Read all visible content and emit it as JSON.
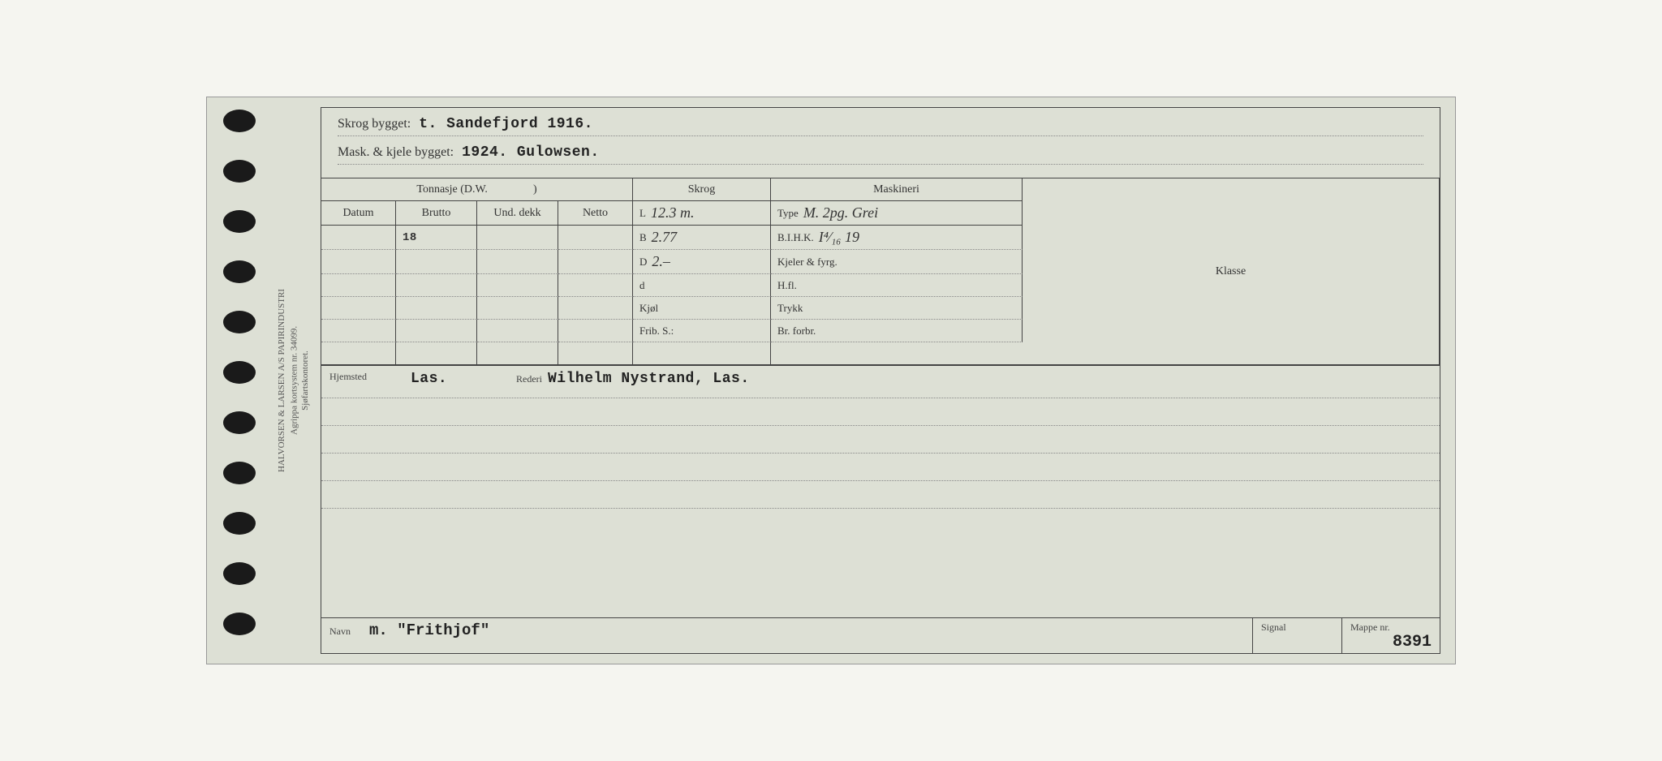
{
  "side": {
    "line1": "HALVORSEN & LARSEN A/S PAPIRINDUSTRI",
    "line2": "Agrippa kortsystem nr. 34099.",
    "line3": "Sjøfartskontoret."
  },
  "header": {
    "skrog_label": "Skrog bygget:",
    "skrog_value": "t. Sandefjord 1916.",
    "mask_label": "Mask. & kjele bygget:",
    "mask_value": "1924. Gulowsen."
  },
  "table": {
    "tonnasje_label": "Tonnasje (D.W.",
    "tonnasje_close": ")",
    "skrog_hdr": "Skrog",
    "maskineri_hdr": "Maskineri",
    "klasse_hdr": "Klasse",
    "cols": {
      "datum": "Datum",
      "brutto": "Brutto",
      "unddekk": "Und. dekk",
      "netto": "Netto"
    },
    "rows": {
      "brutto_val": "18",
      "datum_val": "",
      "unddekk_val": "",
      "netto_val": ""
    },
    "skrog": {
      "L_lab": "L",
      "L_val": "12.3 m.",
      "B_lab": "B",
      "B_val": "2.77",
      "D_lab": "D",
      "D_val": "2.–",
      "d_lab": "d",
      "d_val": "",
      "kjol_lab": "Kjøl",
      "kjol_val": "",
      "frib_lab": "Frib. S.:",
      "frib_val": ""
    },
    "mach": {
      "type_lab": "Type",
      "type_val": "M. 2pg. Grei",
      "bihk_lab": "B.I.H.K.",
      "bihk_val": "I⁴⁄₁₆ 19",
      "kjeler_lab": "Kjeler & fyrg.",
      "kjeler_val": "",
      "hfl_lab": "H.fl.",
      "hfl_val": "",
      "trykk_lab": "Trykk",
      "trykk_val": "",
      "br_lab": "Br. forbr.",
      "br_val": ""
    }
  },
  "lower": {
    "hjemsted_lab": "Hjemsted",
    "hjemsted_val": "Las.",
    "rederi_lab": "Rederi",
    "rederi_val": "Wilhelm Nystrand, Las."
  },
  "footer": {
    "navn_lab": "Navn",
    "navn_val": "m. \"Frithjof\"",
    "signal_lab": "Signal",
    "signal_val": "",
    "mappe_lab": "Mappe nr.",
    "mappe_val": "8391"
  },
  "style": {
    "card_bg": "#dde0d5",
    "border_color": "#444444",
    "dotted_color": "#888888",
    "hole_color": "#1a1a1a",
    "typed_font": "Courier New",
    "label_fontsize": 14
  }
}
